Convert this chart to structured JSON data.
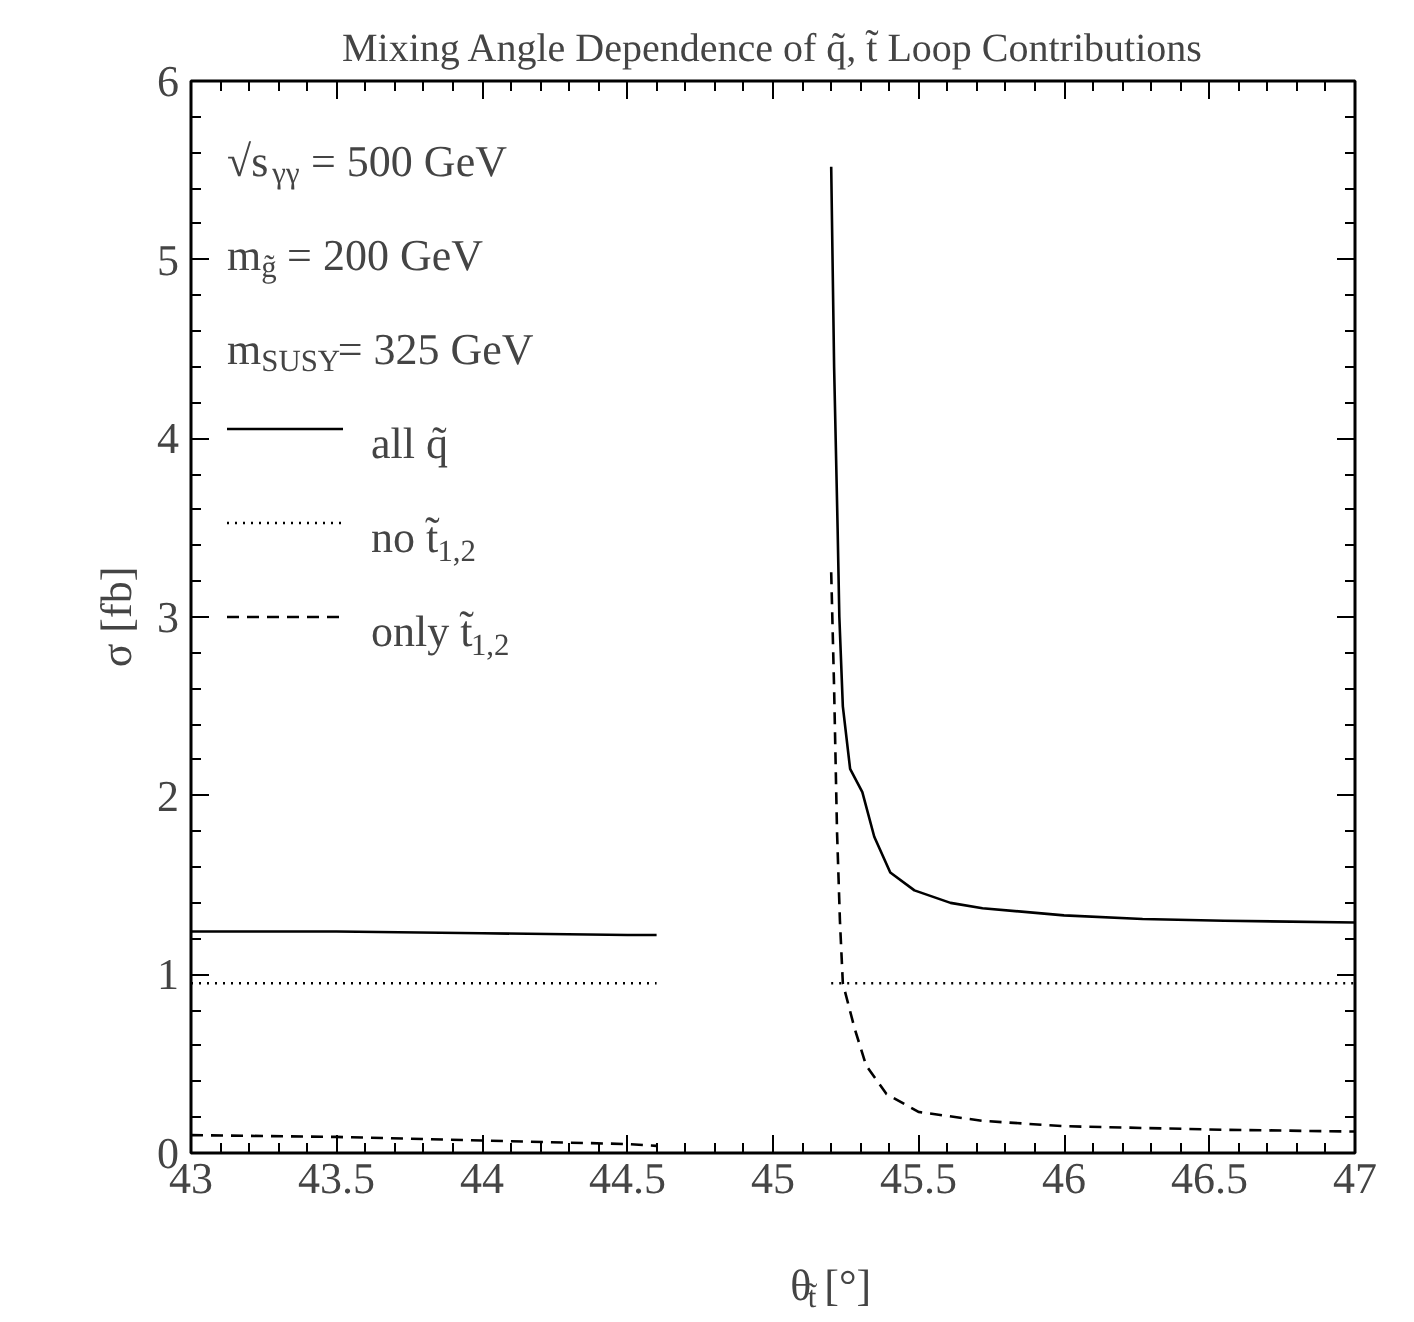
{
  "chart_data": {
    "type": "line",
    "title": "Mixing Angle Dependence of q̃, t̃ Loop Contributions",
    "xlabel": "θ$_{t̃}$ [°]",
    "ylabel": "σ [fb]",
    "xlim": [
      43,
      47
    ],
    "xticks": [
      43,
      43.5,
      44,
      44.5,
      45,
      45.5,
      46,
      46.5,
      47
    ],
    "ylim": [
      0,
      6
    ],
    "yticks": [
      0,
      1,
      2,
      3,
      4,
      5,
      6
    ],
    "grid": false,
    "legend": "top left",
    "annotations": [
      "√s$_{γγ}$ = 500 GeV",
      "m$_{g̃}$ = 200 GeV",
      "m$_{SUSY}$= 325 GeV"
    ],
    "series": [
      {
        "name": "all q̃",
        "color": "#000000",
        "line_style": "solid",
        "x": [
          43,
          43.5,
          44,
          44.5,
          44.6,
          44.9,
          45.2,
          45.21,
          45.222,
          45.228,
          45.24,
          45.265,
          45.307,
          45.348,
          45.403,
          45.486,
          45.61,
          45.72,
          46,
          46.27,
          46.55,
          47
        ],
        "values": [
          1.24,
          1.24,
          1.23,
          1.22,
          1.22,
          null,
          5.52,
          4.4,
          3.5,
          3.0,
          2.5,
          2.15,
          2.02,
          1.77,
          1.57,
          1.47,
          1.4,
          1.37,
          1.33,
          1.31,
          1.3,
          1.29
        ]
      },
      {
        "name": "no t̃$_{1,2}$",
        "color": "#000000",
        "line_style": "dotted",
        "x": [
          43,
          44.6,
          44.9,
          45.2,
          47
        ],
        "values": [
          0.95,
          0.95,
          null,
          0.95,
          0.95
        ]
      },
      {
        "name": "only t̃$_{1,2}$",
        "color": "#000000",
        "line_style": "dashed",
        "x": [
          43,
          43.5,
          44,
          44.5,
          44.6,
          44.9,
          45.2,
          45.21,
          45.22,
          45.23,
          45.24,
          45.28,
          45.32,
          45.39,
          45.5,
          45.72,
          46,
          46.55,
          47
        ],
        "values": [
          0.1,
          0.09,
          0.07,
          0.05,
          0.04,
          null,
          3.25,
          2.6,
          1.8,
          1.3,
          0.95,
          0.7,
          0.49,
          0.33,
          0.23,
          0.18,
          0.15,
          0.13,
          0.12
        ]
      }
    ]
  }
}
